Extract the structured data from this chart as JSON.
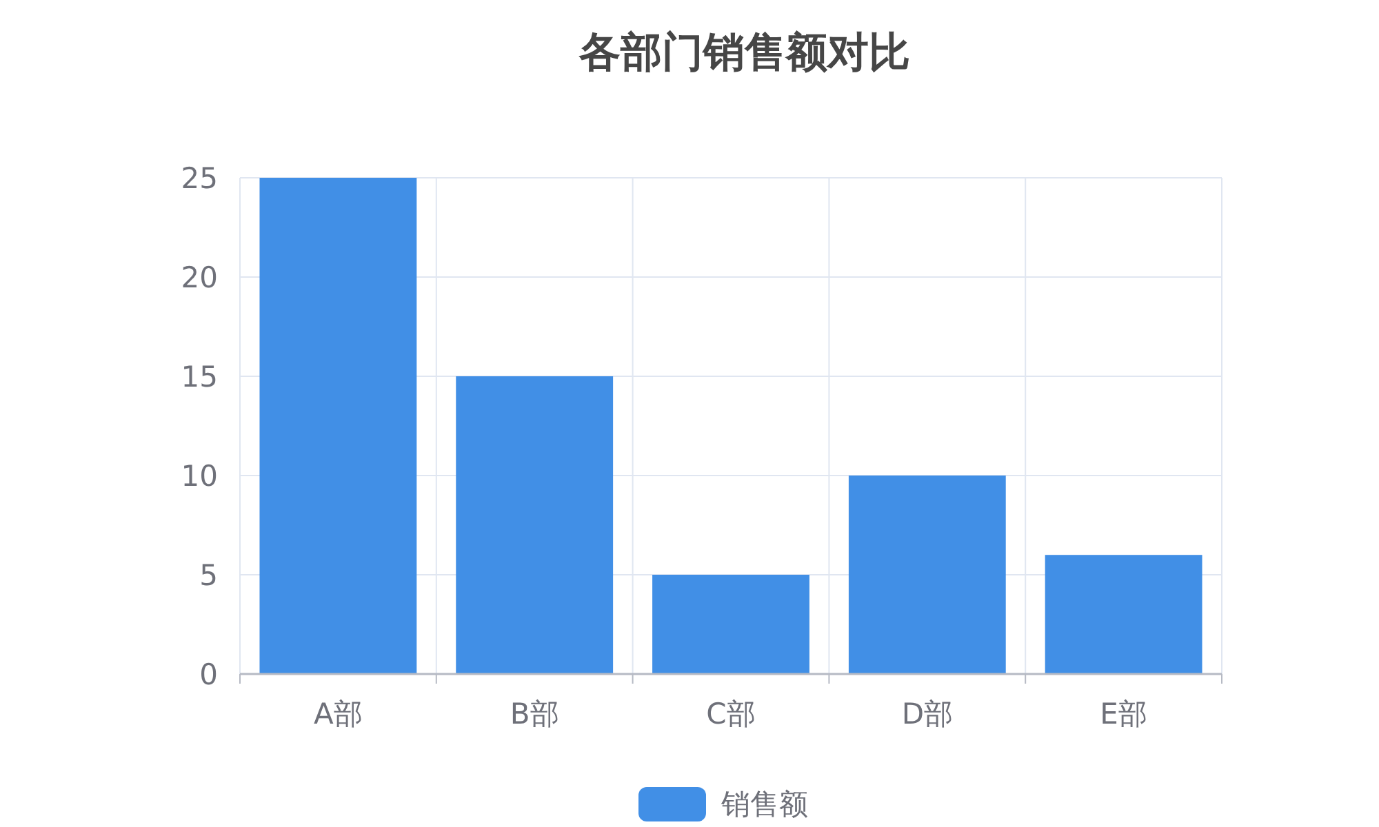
{
  "chart_data": {
    "type": "bar",
    "title": "各部门销售额对比",
    "categories": [
      "A部",
      "B部",
      "C部",
      "D部",
      "E部"
    ],
    "series": [
      {
        "name": "销售额",
        "color": "#418fe6",
        "values": [
          25,
          15,
          5,
          10,
          6
        ]
      }
    ],
    "ylim": [
      0,
      25
    ],
    "yticks": [
      0,
      5,
      10,
      15,
      20,
      25
    ],
    "grid": true,
    "legend": "bottom"
  }
}
